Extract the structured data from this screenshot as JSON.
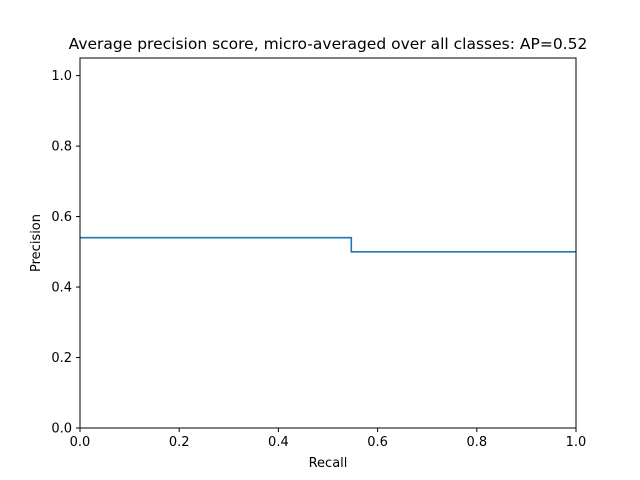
{
  "chart_data": {
    "type": "line",
    "title": "Average precision score, micro-averaged over all classes: AP=0.52",
    "xlabel": "Recall",
    "ylabel": "Precision",
    "xlim": [
      0.0,
      1.0
    ],
    "ylim": [
      0.0,
      1.05
    ],
    "xticks": [
      0.0,
      0.2,
      0.4,
      0.6,
      0.8,
      1.0
    ],
    "xtick_labels": [
      "0.0",
      "0.2",
      "0.4",
      "0.6",
      "0.8",
      "1.0"
    ],
    "yticks": [
      0.0,
      0.2,
      0.4,
      0.6,
      0.8,
      1.0
    ],
    "ytick_labels": [
      "0.0",
      "0.2",
      "0.4",
      "0.6",
      "0.8",
      "1.0"
    ],
    "grid": false,
    "step": "post",
    "series": [
      {
        "color": "#1f77b4",
        "x": [
          0.0,
          0.547,
          0.547,
          1.0
        ],
        "y": [
          0.54,
          0.54,
          0.5,
          0.5
        ]
      }
    ]
  }
}
